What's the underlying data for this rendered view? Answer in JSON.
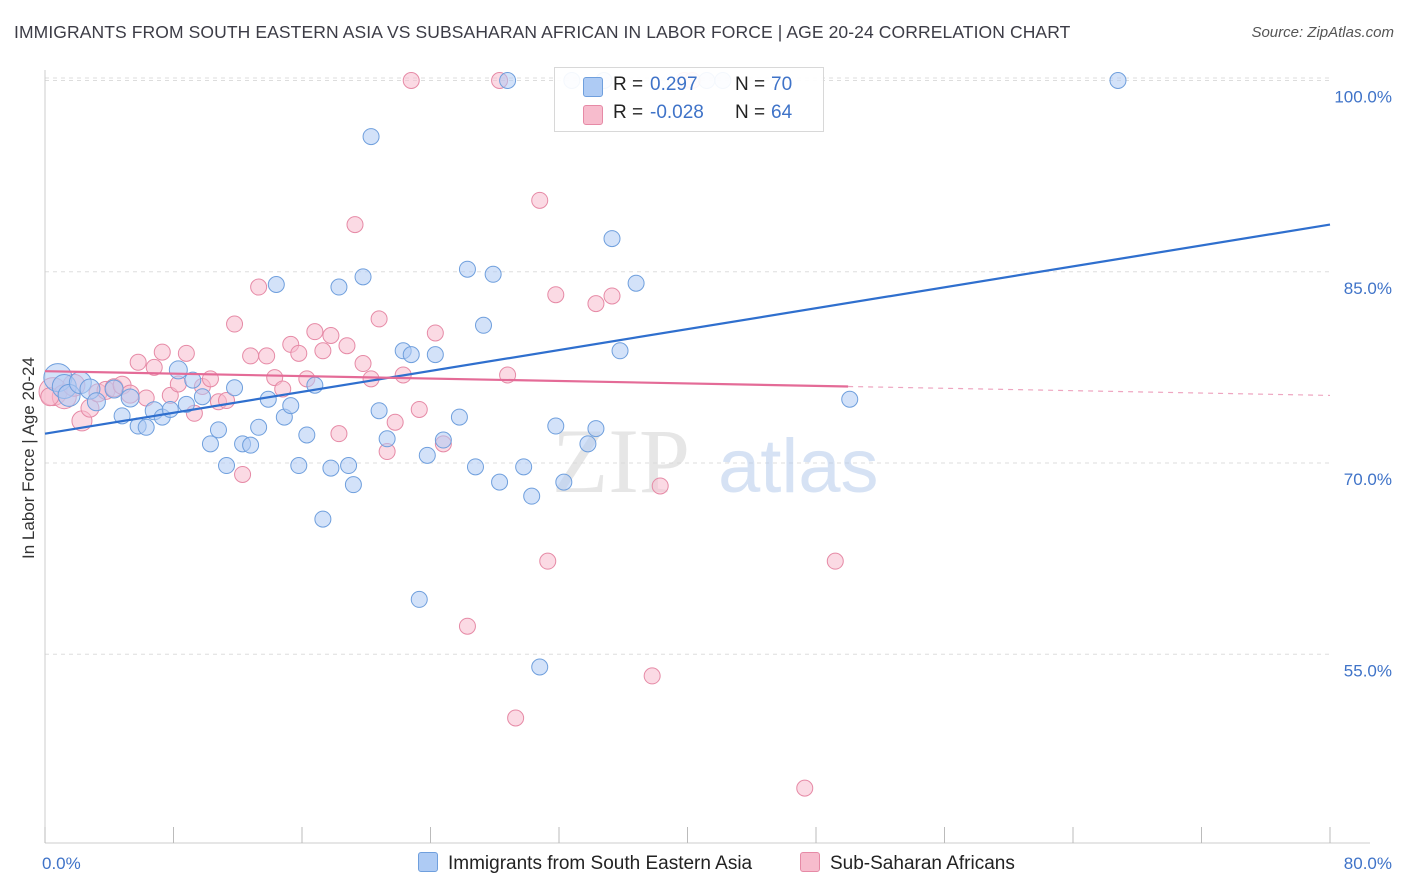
{
  "title": "IMMIGRANTS FROM SOUTH EASTERN ASIA VS SUBSAHARAN AFRICAN IN LABOR FORCE | AGE 20-24 CORRELATION CHART",
  "source": "Source: ZipAtlas.com",
  "watermark": {
    "zip": "ZIP",
    "atlas": "atlas"
  },
  "legend": {
    "r_label": "R =",
    "n_label": "N =",
    "rows": [
      {
        "r": "0.297",
        "n": "70",
        "color": "#aecbf4"
      },
      {
        "r": "-0.028",
        "n": "64",
        "color": "#f7bccd"
      }
    ]
  },
  "colors": {
    "blue_fill": "#aecbf4",
    "blue_stroke": "#6f9fdd",
    "blue_line": "#2f6fce",
    "pink_fill": "#f7bccd",
    "pink_stroke": "#e68aa6",
    "pink_line": "#e46b97",
    "tick_text": "#3f73c8",
    "grid": "#dddddd"
  },
  "chart_data": {
    "type": "scatter",
    "title": "IMMIGRANTS FROM SOUTH EASTERN ASIA VS SUBSAHARAN AFRICAN IN LABOR FORCE | AGE 20-24 CORRELATION CHART",
    "xlabel": "",
    "ylabel": "In Labor Force | Age 20-24",
    "xlim": [
      0,
      80
    ],
    "ylim": [
      40,
      102.5
    ],
    "x_tick_labels": [
      "0.0%",
      "80.0%"
    ],
    "y_ticks": [
      55,
      70,
      85,
      100
    ],
    "y_tick_labels": [
      "55.0%",
      "70.0%",
      "85.0%",
      "100.0%"
    ],
    "grid": true,
    "legend_position": "top-center",
    "series": [
      {
        "name": "Immigrants from South Eastern Asia",
        "color": "#aecbf4",
        "trend": {
          "x": [
            0,
            80
          ],
          "y": [
            72.3,
            88.7
          ]
        },
        "points": [
          [
            0.8,
            76.7,
            14
          ],
          [
            1.2,
            76.0,
            12
          ],
          [
            1.5,
            75.3,
            11
          ],
          [
            2.2,
            76.3,
            11
          ],
          [
            2.8,
            75.8,
            10
          ],
          [
            3.2,
            74.8,
            9
          ],
          [
            4.3,
            75.8,
            9
          ],
          [
            4.8,
            73.7,
            8
          ],
          [
            5.3,
            75.1,
            9
          ],
          [
            5.8,
            72.9,
            8
          ],
          [
            6.3,
            72.8,
            8
          ],
          [
            6.8,
            74.1,
            9
          ],
          [
            7.3,
            73.6,
            8
          ],
          [
            7.8,
            74.2,
            8
          ],
          [
            8.3,
            77.3,
            9
          ],
          [
            8.8,
            74.6,
            8
          ],
          [
            9.2,
            76.5,
            8
          ],
          [
            9.8,
            75.2,
            8
          ],
          [
            10.3,
            71.5,
            8
          ],
          [
            10.8,
            72.6,
            8
          ],
          [
            11.3,
            69.8,
            8
          ],
          [
            11.8,
            75.9,
            8
          ],
          [
            12.3,
            71.5,
            8
          ],
          [
            12.8,
            71.4,
            8
          ],
          [
            13.3,
            72.8,
            8
          ],
          [
            13.9,
            75.0,
            8
          ],
          [
            14.4,
            84.0,
            8
          ],
          [
            14.9,
            73.6,
            8
          ],
          [
            15.3,
            74.5,
            8
          ],
          [
            15.8,
            69.8,
            8
          ],
          [
            16.3,
            72.2,
            8
          ],
          [
            16.8,
            76.1,
            8
          ],
          [
            17.3,
            65.6,
            8
          ],
          [
            17.8,
            69.6,
            8
          ],
          [
            18.3,
            83.8,
            8
          ],
          [
            18.9,
            69.8,
            8
          ],
          [
            19.2,
            68.3,
            8
          ],
          [
            19.8,
            84.6,
            8
          ],
          [
            20.3,
            95.6,
            8
          ],
          [
            20.8,
            74.1,
            8
          ],
          [
            21.3,
            71.9,
            8
          ],
          [
            22.3,
            78.8,
            8
          ],
          [
            22.8,
            78.5,
            8
          ],
          [
            23.3,
            59.3,
            8
          ],
          [
            23.8,
            70.6,
            8
          ],
          [
            24.3,
            78.5,
            8
          ],
          [
            24.8,
            71.8,
            8
          ],
          [
            25.8,
            73.6,
            8
          ],
          [
            26.3,
            85.2,
            8
          ],
          [
            26.8,
            69.7,
            8
          ],
          [
            27.3,
            80.8,
            8
          ],
          [
            27.9,
            84.8,
            8
          ],
          [
            28.3,
            68.5,
            8
          ],
          [
            28.8,
            100.0,
            8
          ],
          [
            29.8,
            69.7,
            8
          ],
          [
            30.3,
            67.4,
            8
          ],
          [
            30.8,
            54.0,
            8
          ],
          [
            31.8,
            72.9,
            8
          ],
          [
            32.3,
            68.5,
            8
          ],
          [
            32.8,
            100.0,
            8
          ],
          [
            33.8,
            71.5,
            8
          ],
          [
            34.3,
            72.7,
            8
          ],
          [
            34.8,
            100.0,
            8
          ],
          [
            35.3,
            87.6,
            8
          ],
          [
            35.8,
            78.8,
            8
          ],
          [
            36.8,
            84.1,
            8
          ],
          [
            41.2,
            100.0,
            8
          ],
          [
            42.2,
            100.0,
            8
          ],
          [
            50.1,
            75.0,
            8
          ],
          [
            66.8,
            100.0,
            8
          ]
        ]
      },
      {
        "name": "Sub-Saharan Africans",
        "color": "#f7bccd",
        "trend": {
          "x": [
            0,
            50
          ],
          "y": [
            77.2,
            76.0
          ],
          "dashed_to": {
            "x": 80,
            "y": 75.3
          }
        },
        "points": [
          [
            0.5,
            75.6,
            14
          ],
          [
            1.2,
            75.2,
            12
          ],
          [
            1.8,
            76.1,
            11
          ],
          [
            2.3,
            73.3,
            10
          ],
          [
            2.8,
            74.3,
            9
          ],
          [
            3.3,
            75.5,
            9
          ],
          [
            3.8,
            75.7,
            9
          ],
          [
            4.3,
            75.9,
            9
          ],
          [
            4.8,
            76.1,
            9
          ],
          [
            5.3,
            75.4,
            9
          ],
          [
            5.8,
            77.9,
            8
          ],
          [
            6.3,
            75.1,
            8
          ],
          [
            6.8,
            77.5,
            8
          ],
          [
            7.3,
            78.7,
            8
          ],
          [
            7.8,
            75.3,
            8
          ],
          [
            8.3,
            76.2,
            8
          ],
          [
            8.8,
            78.6,
            8
          ],
          [
            9.3,
            73.9,
            8
          ],
          [
            9.8,
            76.0,
            8
          ],
          [
            10.3,
            76.6,
            8
          ],
          [
            10.8,
            74.8,
            8
          ],
          [
            11.3,
            74.9,
            8
          ],
          [
            11.8,
            80.9,
            8
          ],
          [
            12.3,
            69.1,
            8
          ],
          [
            12.8,
            78.4,
            8
          ],
          [
            13.3,
            83.8,
            8
          ],
          [
            13.8,
            78.4,
            8
          ],
          [
            14.3,
            76.7,
            8
          ],
          [
            14.8,
            75.8,
            8
          ],
          [
            15.3,
            79.3,
            8
          ],
          [
            15.8,
            78.6,
            8
          ],
          [
            16.3,
            76.6,
            8
          ],
          [
            16.8,
            80.3,
            8
          ],
          [
            17.3,
            78.8,
            8
          ],
          [
            17.8,
            80.0,
            8
          ],
          [
            18.3,
            72.3,
            8
          ],
          [
            18.8,
            79.2,
            8
          ],
          [
            19.3,
            88.7,
            8
          ],
          [
            19.8,
            77.8,
            8
          ],
          [
            20.3,
            76.6,
            8
          ],
          [
            20.8,
            81.3,
            8
          ],
          [
            21.3,
            70.9,
            8
          ],
          [
            21.8,
            73.2,
            8
          ],
          [
            22.3,
            76.9,
            8
          ],
          [
            22.8,
            100.0,
            8
          ],
          [
            23.3,
            74.2,
            8
          ],
          [
            24.3,
            80.2,
            8
          ],
          [
            24.8,
            71.5,
            8
          ],
          [
            26.3,
            57.2,
            8
          ],
          [
            28.3,
            100.0,
            8
          ],
          [
            28.8,
            76.9,
            8
          ],
          [
            29.3,
            50.0,
            8
          ],
          [
            30.8,
            90.6,
            8
          ],
          [
            31.3,
            62.3,
            8
          ],
          [
            31.8,
            83.2,
            8
          ],
          [
            34.3,
            82.5,
            8
          ],
          [
            35.3,
            83.1,
            8
          ],
          [
            37.8,
            53.3,
            8
          ],
          [
            38.3,
            68.2,
            8
          ],
          [
            39.8,
            100.0,
            8
          ],
          [
            40.3,
            100.0,
            8
          ],
          [
            47.3,
            44.5,
            8
          ],
          [
            49.2,
            62.3,
            8
          ],
          [
            0.3,
            75.2,
            9
          ]
        ]
      }
    ]
  },
  "x_axis": {
    "left_label": "0.0%",
    "right_label": "80.0%"
  },
  "bottom_legend": [
    {
      "label": "Immigrants from South Eastern Asia",
      "color": "#aecbf4"
    },
    {
      "label": "Sub-Saharan Africans",
      "color": "#f7bccd"
    }
  ]
}
